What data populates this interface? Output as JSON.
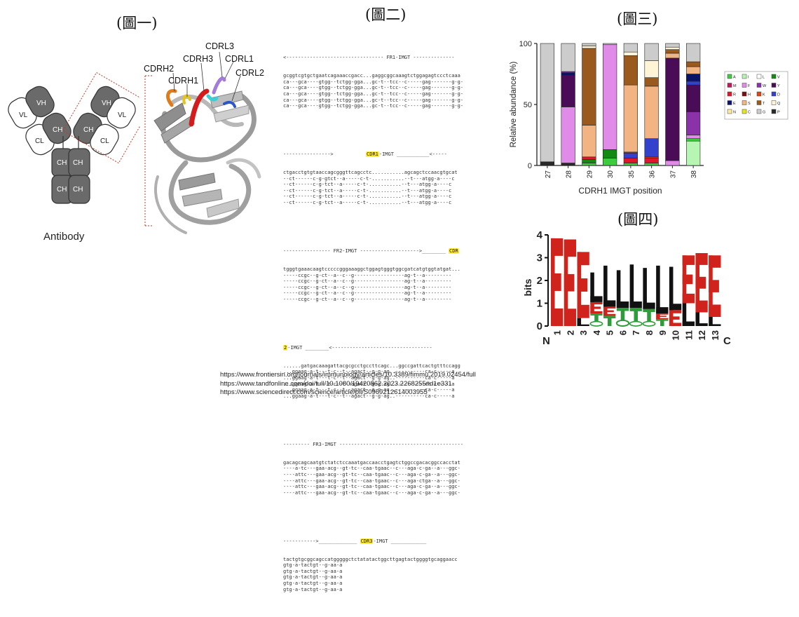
{
  "figure_labels": {
    "fig1": "(圖一)",
    "fig2": "(圖二)",
    "fig3": "(圖三)",
    "fig4": "(圖四)"
  },
  "antibody": {
    "caption": "Antibody",
    "domains": {
      "vl": "VL",
      "vh": "VH",
      "cl": "CL",
      "ch": "CH"
    }
  },
  "structure_labels": [
    "CDRH2",
    "CDRH1",
    "CDRH3",
    "CDRL3",
    "CDRL1",
    "CDRL2"
  ],
  "sequences": {
    "fr1_header": "<--------------------------------- FR1-IMGT --------------",
    "fr1_lines": [
      "gcggtcgtgctgaatcagaaaccgacc...gaggcggcaaagtctggagagtccctcaaa",
      "ca---gca----gtgg--tctgg-gga...gc-t--tcc--c-----gag-------g-g-",
      "ca---gca----gtgg--tctgg-gga...gc-t--tcc--c-----gag-------g-g-",
      "ca---gca----gtgg--tctgg-gga...gc-t--tcc--c-----gag-------g-g-",
      "ca---gca----gtgg--tctgg-gga...gc-t--tcc--c-----gag-------g-g-",
      "ca---gca----gtgg--tctgg-gga...gc-t--tcc--c-----gag-------g-g-"
    ],
    "cdr1_header_pre": "---------------->           ",
    "cdr1_label": "CDR1",
    "cdr1_header_post": "-IMGT ___________<-----",
    "cdr1_lines": [
      "ctgacctgtgtaaccagcgggttcagcctc...........agcagctccaacgtgcat",
      "--ct------c-g-gtct--a-----c-t-...........--t---atgg-a----c",
      "--ct------c-g-tct--a-----c-t-...........--t---atgg-a----c",
      "--ct------c-g-tct--a-----c-t-...........--t---atgg-a----c",
      "--ct------c-g-tct--a-----c-t-...........--t---atgg-a----c",
      "--ct------c-g-tct--a-----c-t-...........--t---atgg-a----c"
    ],
    "fr2_header_pre": "---------------- FR2-IMGT -------------------->________ ",
    "fr2_cdr_label": "CDR",
    "fr2_lines": [
      "tgggtgaaacaagtcccccgggaaaggctggagtgggtggcgatcatgtggtatgat...",
      "-----ccgc--g-ct--a--c--g-----------------ag-t--a---------",
      "-----ccgc--g-ct--a--c--g-----------------ag-t--a---------",
      "-----ccgc--g-ct--a--c--g-----------------ag-t--a---------",
      "-----ccgc--g-ct--a--c--g-----------------ag-t--a---------",
      "-----ccgc--g-ct--a--c--g-----------------ag-t--a---------"
    ],
    "cdr2_label": "2",
    "cdr2_header_post": "-IMGT ________<----------------------------------",
    "cdr2_lines": [
      "......gatgacaaagattacgcgcctgccttcagc...ggccgattcactgtttccagg",
      "...ggaag-a-t---t-c--t--agact--g-g-ag..----------ca-c-----a",
      "...ggaag-a-t---t-c--t--agact--g-g-ag..----------ca-c-----a",
      "...ggaag-a-t---t-c--t--agact--g-g-ag..----------ca-c-----a",
      "...ggaag-a-t---t-c--t--agact--g-g-ag..----------ca-c-----a",
      "...ggaag-a-t---t-c--t--agact--g-g-ag..----------ca-c-----a"
    ],
    "fr3_header": "--------- FR3-IMGT ------------------------------------------",
    "fr3_lines": [
      "gacagcagcaatgtctatctccaaatgaccaacctgagtctggccgacacggccacctat",
      "----a-tc---gaa-acg--gt-tc--caa-tgaac--c---aga-c-ga--a---ggc-",
      "----attc---gaa-acg--gt-tc--caa-tgaac--c---aga-c-ga--a---ggc-",
      "----attc---gaa-acg--gt-tc--caa-tgaac--c---aga-ctga--a---ggc-",
      "----attc---gaa-acg--gt-tc--caa-tgaac--c---aga-c-ga--a---ggc-",
      "----attc---gaa-acg--gt-tc--caa-tgaac--c---aga-c-ga--a---ggc-"
    ],
    "cdr3_header_pre": "----------->_____________ ",
    "cdr3_label": "CDR3",
    "cdr3_header_post": "-IMGT ____________",
    "cdr3_lines": [
      "tactgtgcggcagccatgggggctctatatactggcttgagtactggggtgcaggaacc",
      "gtg-a-tactgt--g-aa-a",
      "gtg-a-tactgt--g-aa-a",
      "gtg-a-tactgt--g-aa-a",
      "gtg-a-tactgt--g-aa-a",
      "gtg-a-tactgt--g-aa-a"
    ]
  },
  "bar_chart": {
    "type": "bar",
    "stacked": true,
    "xlabel": "CDRH1 IMGT position",
    "ylabel": "Relative abundance (%)",
    "ylim": [
      0,
      100
    ],
    "yticks": [
      "0",
      "50",
      "100"
    ],
    "categories": [
      "27",
      "28",
      "29",
      "30",
      "35",
      "36",
      "37",
      "38"
    ],
    "legend_position": "right",
    "legend": [
      {
        "code": "A",
        "color": "#3dcc3d"
      },
      {
        "code": "I",
        "color": "#b7f5b2"
      },
      {
        "code": "L",
        "color": "#ffffff"
      },
      {
        "code": "V",
        "color": "#138b13"
      },
      {
        "code": "M",
        "color": "#c2185b"
      },
      {
        "code": "F",
        "color": "#e08be8"
      },
      {
        "code": "W",
        "color": "#8a33a8"
      },
      {
        "code": "Y",
        "color": "#4b0c57"
      },
      {
        "code": "R",
        "color": "#e0162b"
      },
      {
        "code": "H",
        "color": "#7a1010"
      },
      {
        "code": "K",
        "color": "#d9451c"
      },
      {
        "code": "D",
        "color": "#3341cc"
      },
      {
        "code": "E",
        "color": "#0a1466"
      },
      {
        "code": "S",
        "color": "#f2b483"
      },
      {
        "code": "T",
        "color": "#9a5a1e"
      },
      {
        "code": "Q",
        "color": "#fff5d6"
      },
      {
        "code": "N",
        "color": "#ffe89c"
      },
      {
        "code": "C",
        "color": "#e6e61a"
      },
      {
        "code": "G",
        "color": "#cccccc"
      },
      {
        "code": "P",
        "color": "#2a2a2a"
      }
    ],
    "stacks": [
      [
        {
          "c": "P",
          "v": 3
        },
        {
          "c": "G",
          "v": 97
        }
      ],
      [
        {
          "c": "P",
          "v": 2
        },
        {
          "c": "F",
          "v": 46
        },
        {
          "c": "Y",
          "v": 26
        },
        {
          "c": "E",
          "v": 2
        },
        {
          "c": "W",
          "v": 1
        },
        {
          "c": "G",
          "v": 23
        }
      ],
      [
        {
          "c": "A",
          "v": 2
        },
        {
          "c": "V",
          "v": 3
        },
        {
          "c": "R",
          "v": 2
        },
        {
          "c": "S",
          "v": 26
        },
        {
          "c": "T",
          "v": 63
        },
        {
          "c": "Q",
          "v": 2
        },
        {
          "c": "G",
          "v": 2
        }
      ],
      [
        {
          "c": "A",
          "v": 6
        },
        {
          "c": "V",
          "v": 7
        },
        {
          "c": "F",
          "v": 86
        },
        {
          "c": "G",
          "v": 1
        }
      ],
      [
        {
          "c": "A",
          "v": 2
        },
        {
          "c": "R",
          "v": 4
        },
        {
          "c": "D",
          "v": 4
        },
        {
          "c": "W",
          "v": 1
        },
        {
          "c": "S",
          "v": 55
        },
        {
          "c": "T",
          "v": 24
        },
        {
          "c": "Q",
          "v": 3
        },
        {
          "c": "G",
          "v": 7
        }
      ],
      [
        {
          "c": "A",
          "v": 2
        },
        {
          "c": "R",
          "v": 4
        },
        {
          "c": "K",
          "v": 1
        },
        {
          "c": "D",
          "v": 15
        },
        {
          "c": "S",
          "v": 43
        },
        {
          "c": "T",
          "v": 7
        },
        {
          "c": "Q",
          "v": 14
        },
        {
          "c": "G",
          "v": 14
        }
      ],
      [
        {
          "c": "F",
          "v": 4
        },
        {
          "c": "Y",
          "v": 84
        },
        {
          "c": "S",
          "v": 4
        },
        {
          "c": "T",
          "v": 3
        },
        {
          "c": "Q",
          "v": 2
        },
        {
          "c": "G",
          "v": 3
        }
      ],
      [
        {
          "c": "I",
          "v": 20
        },
        {
          "c": "A",
          "v": 2
        },
        {
          "c": "F",
          "v": 3
        },
        {
          "c": "W",
          "v": 19
        },
        {
          "c": "Y",
          "v": 22
        },
        {
          "c": "D",
          "v": 3
        },
        {
          "c": "E",
          "v": 6
        },
        {
          "c": "S",
          "v": 6
        },
        {
          "c": "T",
          "v": 4
        },
        {
          "c": "G",
          "v": 15
        }
      ]
    ]
  },
  "logo_chart": {
    "ylabel": "bits",
    "ylim": [
      0,
      4
    ],
    "yticks": [
      "0",
      "1",
      "2",
      "3",
      "4"
    ],
    "start_label": "N",
    "end_label": "C",
    "positions": [
      {
        "label": "1",
        "letters": [
          {
            "ch": "E",
            "h": 3.85,
            "color": "#d0231c"
          }
        ]
      },
      {
        "label": "2",
        "letters": [
          {
            "ch": "E",
            "h": 3.8,
            "color": "#d0231c"
          }
        ]
      },
      {
        "label": "3",
        "letters": [
          {
            "ch": "L",
            "h": 0.35,
            "color": "#111111"
          },
          {
            "ch": "E",
            "h": 2.9,
            "color": "#d0231c"
          }
        ]
      },
      {
        "label": "4",
        "letters": [
          {
            "ch": "S",
            "h": 0.2,
            "color": "#2e9c3a"
          },
          {
            "ch": "T",
            "h": 0.35,
            "color": "#2e9c3a"
          },
          {
            "ch": "E",
            "h": 0.5,
            "color": "#d0231c"
          },
          {
            "ch": "L",
            "h": 1.3,
            "color": "#111111"
          }
        ]
      },
      {
        "label": "5",
        "letters": [
          {
            "ch": "T",
            "h": 0.45,
            "color": "#2e9c3a"
          },
          {
            "ch": "E",
            "h": 0.4,
            "color": "#d0231c"
          },
          {
            "ch": "L",
            "h": 1.8,
            "color": "#111111"
          }
        ]
      },
      {
        "label": "6",
        "letters": [
          {
            "ch": "S",
            "h": 0.25,
            "color": "#2e9c3a"
          },
          {
            "ch": "T",
            "h": 0.55,
            "color": "#2e9c3a"
          },
          {
            "ch": "L",
            "h": 1.65,
            "color": "#111111"
          }
        ]
      },
      {
        "label": "7",
        "letters": [
          {
            "ch": "G",
            "h": 0.2,
            "color": "#2e9c3a"
          },
          {
            "ch": "T",
            "h": 0.6,
            "color": "#2e9c3a"
          },
          {
            "ch": "L",
            "h": 1.9,
            "color": "#111111"
          }
        ]
      },
      {
        "label": "8",
        "letters": [
          {
            "ch": "S",
            "h": 0.2,
            "color": "#2e9c3a"
          },
          {
            "ch": "T",
            "h": 0.55,
            "color": "#2e9c3a"
          },
          {
            "ch": "L",
            "h": 1.8,
            "color": "#111111"
          }
        ]
      },
      {
        "label": "9",
        "letters": [
          {
            "ch": "T",
            "h": 0.3,
            "color": "#2e9c3a"
          },
          {
            "ch": "E",
            "h": 0.25,
            "color": "#d0231c"
          },
          {
            "ch": "L",
            "h": 2.1,
            "color": "#111111"
          }
        ]
      },
      {
        "label": "10",
        "letters": [
          {
            "ch": "E",
            "h": 0.7,
            "color": "#d0231c"
          },
          {
            "ch": "L",
            "h": 1.9,
            "color": "#111111"
          }
        ]
      },
      {
        "label": "11",
        "letters": [
          {
            "ch": "L",
            "h": 1.0,
            "color": "#111111"
          },
          {
            "ch": "E",
            "h": 2.1,
            "color": "#d0231c"
          }
        ]
      },
      {
        "label": "12",
        "letters": [
          {
            "ch": "L",
            "h": 0.6,
            "color": "#111111"
          },
          {
            "ch": "E",
            "h": 2.6,
            "color": "#d0231c"
          }
        ]
      },
      {
        "label": "13",
        "letters": [
          {
            "ch": "L",
            "h": 0.4,
            "color": "#111111"
          },
          {
            "ch": "E",
            "h": 2.7,
            "color": "#d0231c"
          }
        ]
      }
    ]
  },
  "references": [
    "https://www.frontiersin.org/journals/immunology/articles/10.3389/fimmu.2019.02454/full",
    "https://www.tandfonline.com/doi/full/10.1080/19420862.2023.2268255#d1e331",
    "https://www.sciencedirect.com/science/article/pii/S0969212614003955"
  ]
}
